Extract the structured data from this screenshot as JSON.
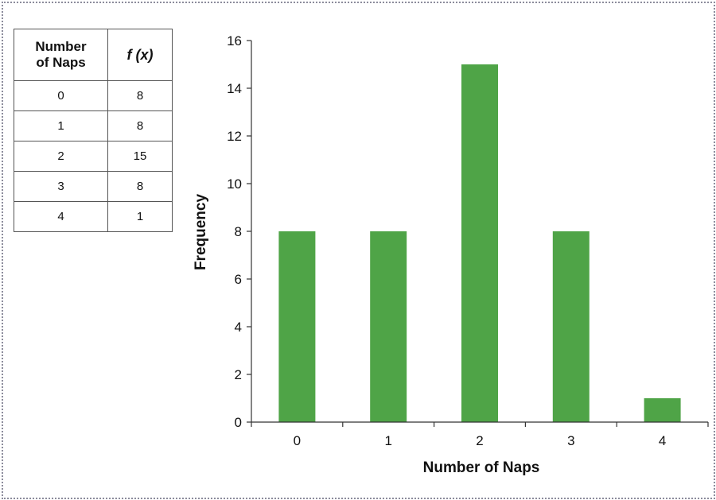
{
  "table": {
    "header_x_line1": "Number",
    "header_x_line2": "of Naps",
    "header_f": "f (x)",
    "rows": [
      {
        "x": "0",
        "f": "8"
      },
      {
        "x": "1",
        "f": "8"
      },
      {
        "x": "2",
        "f": "15"
      },
      {
        "x": "3",
        "f": "8"
      },
      {
        "x": "4",
        "f": "1"
      }
    ]
  },
  "colors": {
    "bar": "#4fa447",
    "axis": "#333333",
    "frame": "#8c8c9c"
  },
  "chart_data": {
    "type": "bar",
    "title": "",
    "categories": [
      "0",
      "1",
      "2",
      "3",
      "4"
    ],
    "values": [
      8,
      8,
      15,
      8,
      1
    ],
    "xlabel": "Number of Naps",
    "ylabel": "Frequency",
    "ylim": [
      0,
      16
    ],
    "yticks": [
      0,
      2,
      4,
      6,
      8,
      10,
      12,
      14,
      16
    ],
    "grid": false,
    "legend": "none"
  }
}
